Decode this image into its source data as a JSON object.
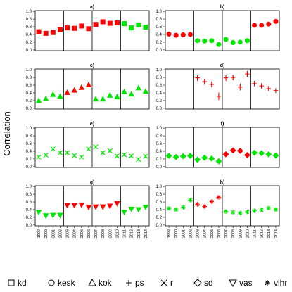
{
  "ylabel": "Correlation",
  "colors": {
    "red": "#ff0000",
    "green": "#00e600"
  },
  "legend": [
    {
      "symbol": "square",
      "label": "kd"
    },
    {
      "symbol": "circle",
      "label": "kesk"
    },
    {
      "symbol": "triangle-up",
      "label": "kok"
    },
    {
      "symbol": "plus",
      "label": "ps"
    },
    {
      "symbol": "cross",
      "label": "r"
    },
    {
      "symbol": "diamond",
      "label": "sd"
    },
    {
      "symbol": "triangle-down",
      "label": "vas"
    },
    {
      "symbol": "asterisk",
      "label": "vihr"
    }
  ],
  "chart_data": {
    "type": "scatter",
    "x": [
      "1999",
      "2000",
      "2001",
      "2002",
      "2003",
      "2004",
      "2005",
      "2006",
      "2007",
      "2008",
      "2009",
      "2010",
      "2011",
      "2012",
      "2013",
      "2014"
    ],
    "ylim": [
      0,
      1.0
    ],
    "yticks": [
      "0.0",
      "0.2",
      "0.4",
      "0.6",
      "0.8",
      "1.0"
    ],
    "ylabel": "Correlation",
    "panels": [
      {
        "label": "a)",
        "symbol": "square",
        "colors": [
          "red",
          "red",
          "red",
          "red",
          "red",
          "red",
          "red",
          "red",
          "red",
          "red",
          "red",
          "red",
          "green",
          "green",
          "green",
          "green"
        ],
        "values": [
          0.47,
          0.43,
          0.45,
          0.52,
          0.57,
          0.56,
          0.62,
          0.55,
          0.66,
          0.73,
          0.69,
          0.7,
          0.68,
          0.57,
          0.65,
          0.59
        ],
        "errors": [
          0.04,
          0.04,
          0.04,
          0.04,
          0.06,
          0.05,
          0.06,
          0.05,
          0.05,
          0.06,
          0.05,
          0.05,
          0.06,
          0.05,
          0.06,
          0.04
        ]
      },
      {
        "label": "b)",
        "symbol": "circle",
        "colors": [
          "red",
          "red",
          "red",
          "red",
          "green",
          "green",
          "green",
          "green",
          "green",
          "green",
          "green",
          "green",
          "red",
          "red",
          "red",
          "red"
        ],
        "values": [
          0.41,
          0.38,
          0.39,
          0.4,
          0.24,
          0.23,
          0.24,
          0.14,
          0.27,
          0.19,
          0.2,
          0.24,
          0.64,
          0.64,
          0.67,
          0.74
        ],
        "errors": [
          0.02,
          0.02,
          0.02,
          0.02,
          0.02,
          0.02,
          0.02,
          0.02,
          0.02,
          0.02,
          0.02,
          0.02,
          0.02,
          0.02,
          0.02,
          0.03
        ]
      },
      {
        "label": "c)",
        "symbol": "triangle-up",
        "colors": [
          "green",
          "green",
          "green",
          "green",
          "red",
          "red",
          "red",
          "red",
          "green",
          "green",
          "green",
          "green",
          "green",
          "green",
          "green",
          "green"
        ],
        "values": [
          0.2,
          0.25,
          0.36,
          0.31,
          0.41,
          0.47,
          0.54,
          0.61,
          0.24,
          0.24,
          0.34,
          0.3,
          0.43,
          0.37,
          0.53,
          0.44
        ],
        "errors": [
          0.03,
          0.03,
          0.03,
          0.03,
          0.03,
          0.03,
          0.03,
          0.03,
          0.03,
          0.03,
          0.03,
          0.03,
          0.03,
          0.03,
          0.03,
          0.03
        ]
      },
      {
        "label": "d)",
        "symbol": "plus",
        "colors": [
          "red",
          "red",
          "red",
          "red",
          "red",
          "red",
          "red",
          "red",
          "red",
          "red",
          "red",
          "red",
          "red",
          "red",
          "red",
          "red"
        ],
        "values": [
          null,
          null,
          null,
          null,
          0.79,
          0.69,
          0.62,
          0.31,
          0.79,
          0.8,
          0.55,
          0.89,
          0.64,
          0.58,
          0.51,
          0.46
        ],
        "errors": [
          null,
          null,
          null,
          null,
          0.08,
          0.08,
          0.08,
          0.1,
          0.08,
          0.07,
          0.09,
          0.08,
          0.07,
          0.07,
          0.07,
          0.06
        ]
      },
      {
        "label": "e)",
        "symbol": "cross",
        "colors": [
          "green",
          "green",
          "green",
          "green",
          "green",
          "green",
          "green",
          "green",
          "green",
          "green",
          "green",
          "green",
          "green",
          "green",
          "green",
          "green"
        ],
        "values": [
          0.25,
          0.3,
          0.46,
          0.36,
          0.36,
          0.29,
          0.25,
          0.46,
          0.51,
          0.36,
          0.41,
          0.28,
          0.31,
          0.28,
          0.19,
          0.27
        ],
        "errors": [
          0.04,
          0.04,
          0.04,
          0.04,
          0.04,
          0.04,
          0.04,
          0.04,
          0.04,
          0.04,
          0.04,
          0.04,
          0.04,
          0.04,
          0.04,
          0.04
        ]
      },
      {
        "label": "f)",
        "symbol": "diamond",
        "colors": [
          "green",
          "green",
          "green",
          "green",
          "green",
          "green",
          "green",
          "green",
          "red",
          "red",
          "red",
          "red",
          "green",
          "green",
          "green",
          "green"
        ],
        "values": [
          0.28,
          0.25,
          0.27,
          0.28,
          0.18,
          0.23,
          0.21,
          0.14,
          0.32,
          0.42,
          0.41,
          0.3,
          0.36,
          0.35,
          0.32,
          0.29
        ],
        "errors": [
          0.02,
          0.02,
          0.02,
          0.02,
          0.02,
          0.02,
          0.02,
          0.02,
          0.02,
          0.02,
          0.02,
          0.02,
          0.02,
          0.02,
          0.02,
          0.02
        ]
      },
      {
        "label": "g)",
        "symbol": "triangle-down",
        "colors": [
          "green",
          "green",
          "green",
          "green",
          "red",
          "red",
          "red",
          "red",
          "red",
          "red",
          "red",
          "red",
          "green",
          "green",
          "green",
          "green"
        ],
        "values": [
          0.33,
          0.24,
          0.25,
          0.25,
          0.51,
          0.51,
          0.52,
          0.46,
          0.47,
          0.47,
          0.49,
          0.56,
          0.33,
          0.41,
          0.4,
          0.46
        ],
        "errors": [
          0.02,
          0.02,
          0.02,
          0.02,
          0.02,
          0.02,
          0.02,
          0.02,
          0.02,
          0.02,
          0.02,
          0.02,
          0.02,
          0.02,
          0.02,
          0.02
        ]
      },
      {
        "label": "h)",
        "symbol": "asterisk",
        "colors": [
          "green",
          "green",
          "green",
          "green",
          "red",
          "red",
          "red",
          "red",
          "green",
          "green",
          "green",
          "green",
          "green",
          "green",
          "green",
          "green"
        ],
        "values": [
          0.43,
          0.4,
          0.46,
          0.65,
          0.54,
          0.48,
          0.61,
          0.72,
          0.35,
          0.33,
          0.31,
          0.34,
          0.37,
          0.39,
          0.44,
          0.4
        ],
        "errors": [
          0.02,
          0.02,
          0.02,
          0.02,
          0.02,
          0.02,
          0.02,
          0.02,
          0.02,
          0.02,
          0.02,
          0.02,
          0.02,
          0.02,
          0.02,
          0.02
        ]
      }
    ]
  }
}
